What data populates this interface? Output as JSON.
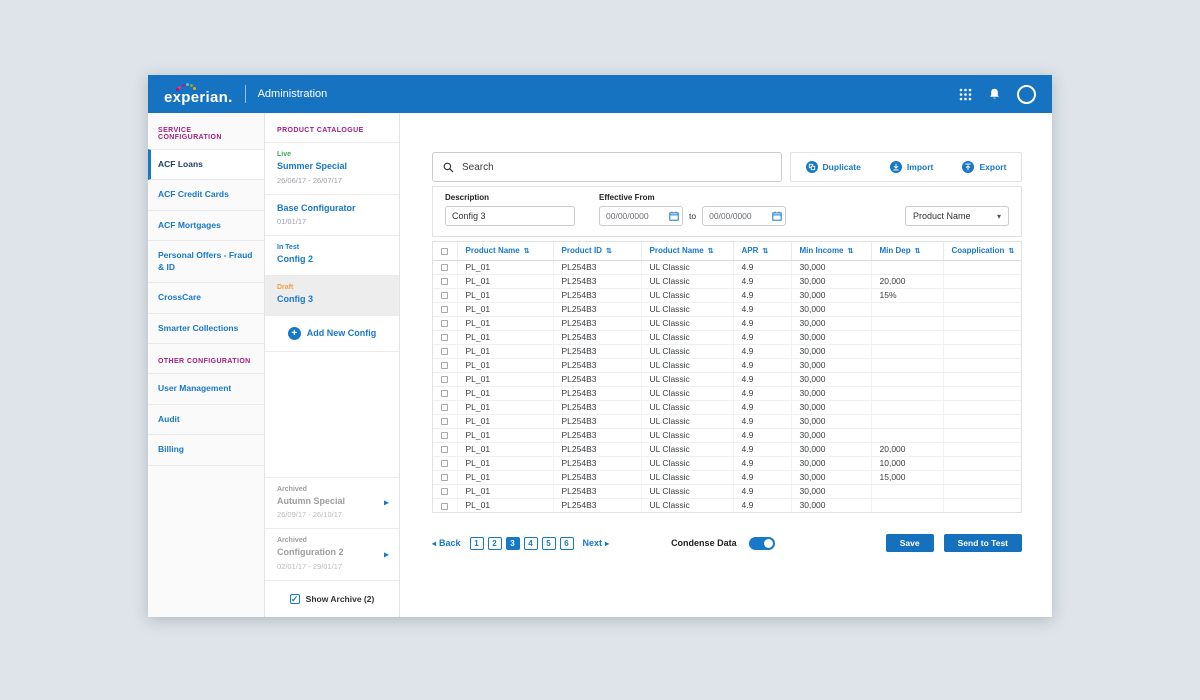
{
  "window": {
    "brand": "experian.",
    "app_title": "Administration"
  },
  "icons": {
    "sort": "⇅",
    "caret": "▾",
    "chevron_right": "▸",
    "back_arrow": "◂",
    "next_arrow": "▸",
    "check": "✓",
    "plus": "+"
  },
  "colors": {
    "header_blue": "#1673c1",
    "link_blue": "#1878c8",
    "section_magenta": "#a21f85",
    "live_green": "#3aaa5c",
    "draft_orange": "#f0a14b",
    "archived_gray": "#9e9e9e"
  },
  "sidebar": {
    "sections": [
      {
        "label": "SERVICE CONFIGURATION",
        "items": [
          {
            "label": "ACF Loans",
            "active": true
          },
          {
            "label": "ACF Credit Cards",
            "active": false
          },
          {
            "label": "ACF Mortgages",
            "active": false
          },
          {
            "label": "Personal Offers - Fraud & ID",
            "active": false
          },
          {
            "label": "CrossCare",
            "active": false
          },
          {
            "label": "Smarter Collections",
            "active": false
          }
        ]
      },
      {
        "label": "OTHER CONFIGURATION",
        "items": [
          {
            "label": "User Management",
            "active": false
          },
          {
            "label": "Audit",
            "active": false
          },
          {
            "label": "Billing",
            "active": false
          }
        ]
      }
    ]
  },
  "catalogue": {
    "label": "PRODUCT CATALOGUE",
    "configs": [
      {
        "status": "Live",
        "status_color": "#3aaa5c",
        "name": "Summer Special",
        "dates": "26/06/17 - 26/07/17",
        "selected": false
      },
      {
        "status": "",
        "status_color": "",
        "name": "Base Configurator",
        "dates": "01/01/17",
        "selected": false
      },
      {
        "status": "In Test",
        "status_color": "#1878c8",
        "name": "Config 2",
        "dates": "",
        "selected": false
      },
      {
        "status": "Draft",
        "status_color": "#f0a14b",
        "name": "Config 3",
        "dates": "",
        "selected": true
      }
    ],
    "add_button_label": "Add New Config",
    "archived": [
      {
        "status": "Archived",
        "name": "Autumn Special",
        "dates": "26/09/17 - 26/10/17"
      },
      {
        "status": "Archived",
        "name": "Configuration 2",
        "dates": "02/01/17 - 29/01/17"
      }
    ],
    "show_archive_label": "Show Archive (2)"
  },
  "toolbar": {
    "search_placeholder": "Search",
    "actions": [
      "Duplicate",
      "Import",
      "Export"
    ]
  },
  "filters": {
    "description_label": "Description",
    "description_value": "Config 3",
    "effective_from_label": "Effective From",
    "date_from_placeholder": "00/00/0000",
    "to_label": "to",
    "date_to_placeholder": "00/00/0000",
    "product_dropdown_value": "Product Name"
  },
  "table": {
    "columns": [
      "Product Name",
      "Product ID",
      "Product Name",
      "APR",
      "Min Income",
      "Min Dep",
      "Coapplication"
    ],
    "rows": [
      [
        "PL_01",
        "PL254B3",
        "UL Classic",
        "4.9",
        "30,000",
        "",
        ""
      ],
      [
        "PL_01",
        "PL254B3",
        "UL Classic",
        "4.9",
        "30,000",
        "20,000",
        ""
      ],
      [
        "PL_01",
        "PL254B3",
        "UL Classic",
        "4.9",
        "30,000",
        "15%",
        ""
      ],
      [
        "PL_01",
        "PL254B3",
        "UL Classic",
        "4.9",
        "30,000",
        "",
        ""
      ],
      [
        "PL_01",
        "PL254B3",
        "UL Classic",
        "4.9",
        "30,000",
        "",
        ""
      ],
      [
        "PL_01",
        "PL254B3",
        "UL Classic",
        "4.9",
        "30,000",
        "",
        ""
      ],
      [
        "PL_01",
        "PL254B3",
        "UL Classic",
        "4.9",
        "30,000",
        "",
        ""
      ],
      [
        "PL_01",
        "PL254B3",
        "UL Classic",
        "4.9",
        "30,000",
        "",
        ""
      ],
      [
        "PL_01",
        "PL254B3",
        "UL Classic",
        "4.9",
        "30,000",
        "",
        ""
      ],
      [
        "PL_01",
        "PL254B3",
        "UL Classic",
        "4.9",
        "30,000",
        "",
        ""
      ],
      [
        "PL_01",
        "PL254B3",
        "UL Classic",
        "4.9",
        "30,000",
        "",
        ""
      ],
      [
        "PL_01",
        "PL254B3",
        "UL Classic",
        "4.9",
        "30,000",
        "",
        ""
      ],
      [
        "PL_01",
        "PL254B3",
        "UL Classic",
        "4.9",
        "30,000",
        "",
        ""
      ],
      [
        "PL_01",
        "PL254B3",
        "UL Classic",
        "4.9",
        "30,000",
        "20,000",
        ""
      ],
      [
        "PL_01",
        "PL254B3",
        "UL Classic",
        "4.9",
        "30,000",
        "10,000",
        ""
      ],
      [
        "PL_01",
        "PL254B3",
        "UL Classic",
        "4.9",
        "30,000",
        "15,000",
        ""
      ],
      [
        "PL_01",
        "PL254B3",
        "UL Classic",
        "4.9",
        "30,000",
        "",
        ""
      ],
      [
        "PL_01",
        "PL254B3",
        "UL Classic",
        "4.9",
        "30,000",
        "",
        ""
      ]
    ]
  },
  "footer": {
    "back_label": "Back",
    "pages": [
      "1",
      "2",
      "3",
      "4",
      "5",
      "6"
    ],
    "active_page": "3",
    "next_label": "Next",
    "condense_label": "Condense Data",
    "save_label": "Save",
    "send_to_test_label": "Send to Test"
  }
}
